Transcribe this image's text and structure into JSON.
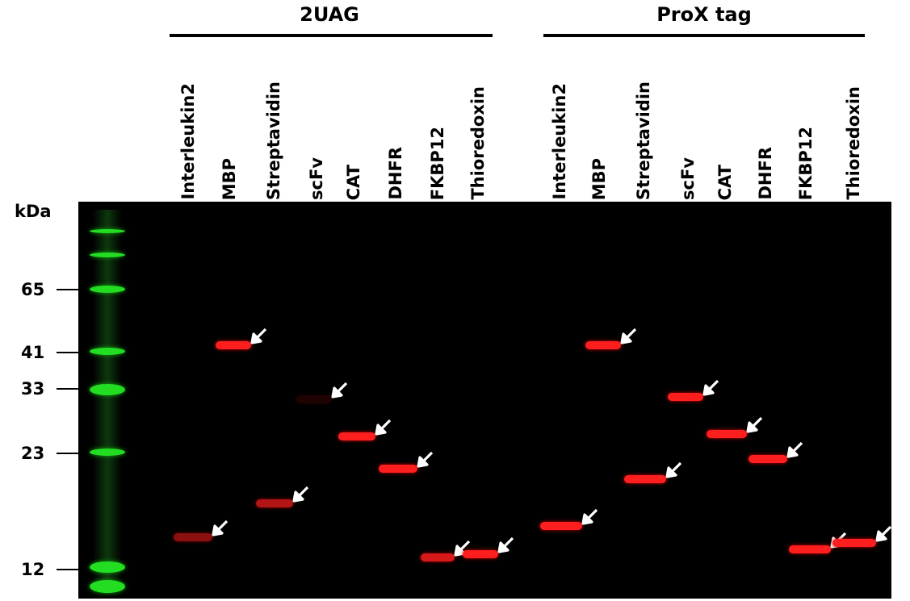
{
  "groups": [
    {
      "title": "2UAG"
    },
    {
      "title": "ProX tag"
    }
  ],
  "lanes": [
    "Interleukin2",
    "MBP",
    "Streptavidin",
    "scFv",
    "CAT",
    "DHFR",
    "FKBP12",
    "Thioredoxin",
    "Interleukin2",
    "MBP",
    "Streptavidin",
    "scFv",
    "CAT",
    "DHFR",
    "FKBP12",
    "Thioredoxin"
  ],
  "axis": {
    "unit": "kDa",
    "markers": [
      "65",
      "41",
      "33",
      "23",
      "12"
    ]
  },
  "colors": {
    "ladder": "#22dd22",
    "band": "#ff1e1e",
    "arrow": "#ffffff",
    "gel_background": "#000000"
  },
  "bands": [
    {
      "lane": 1,
      "intensity": 0.55
    },
    {
      "lane": 2,
      "intensity": 1.0
    },
    {
      "lane": 3,
      "intensity": 0.7
    },
    {
      "lane": 4,
      "intensity": 0.12
    },
    {
      "lane": 5,
      "intensity": 1.0
    },
    {
      "lane": 6,
      "intensity": 1.0
    },
    {
      "lane": 7,
      "intensity": 0.85
    },
    {
      "lane": 8,
      "intensity": 1.0
    },
    {
      "lane": 9,
      "intensity": 1.0
    },
    {
      "lane": 10,
      "intensity": 1.0
    },
    {
      "lane": 11,
      "intensity": 1.0
    },
    {
      "lane": 12,
      "intensity": 1.0
    },
    {
      "lane": 13,
      "intensity": 1.0
    },
    {
      "lane": 14,
      "intensity": 1.0
    },
    {
      "lane": 15,
      "intensity": 1.0
    },
    {
      "lane": 16,
      "intensity": 1.0
    }
  ]
}
